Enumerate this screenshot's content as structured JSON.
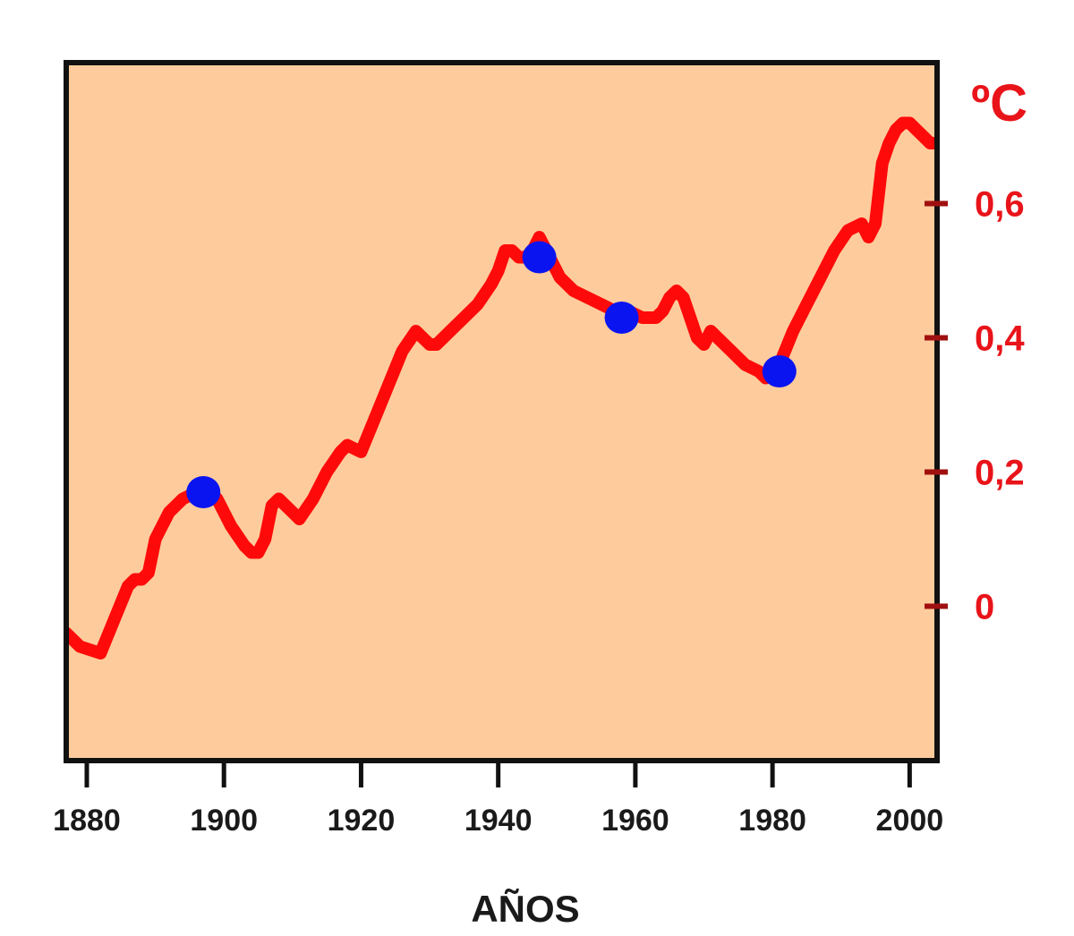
{
  "chart_data": {
    "type": "line",
    "title": "",
    "xlabel": "AÑOS",
    "ylabel": "ºC",
    "xlim": [
      1877,
      2004
    ],
    "ylim": [
      -0.23,
      0.81
    ],
    "x_ticks": [
      1880,
      1900,
      1920,
      1940,
      1960,
      1980,
      2000
    ],
    "y_ticks": [
      {
        "value": 0,
        "label": "0"
      },
      {
        "value": 0.2,
        "label": "0,2"
      },
      {
        "value": 0.4,
        "label": "0,4"
      },
      {
        "value": 0.6,
        "label": "0,6"
      }
    ],
    "grid": false,
    "legend": "none",
    "series": [
      {
        "color": "#ff0a0a",
        "x": [
          1877,
          1879,
          1882,
          1884,
          1886,
          1887,
          1888,
          1889,
          1890,
          1892,
          1894,
          1896,
          1897,
          1899,
          1901,
          1903,
          1904,
          1905,
          1906,
          1907,
          1908,
          1909,
          1911,
          1913,
          1915,
          1917,
          1918,
          1920,
          1922,
          1924,
          1926,
          1928,
          1929,
          1930,
          1931,
          1933,
          1935,
          1937,
          1939,
          1940,
          1941,
          1942,
          1943,
          1944,
          1945,
          1946,
          1947,
          1949,
          1951,
          1953,
          1955,
          1957,
          1959,
          1961,
          1963,
          1964,
          1965,
          1966,
          1967,
          1968,
          1969,
          1970,
          1971,
          1972,
          1974,
          1976,
          1978,
          1979,
          1980,
          1981,
          1983,
          1985,
          1987,
          1989,
          1991,
          1993,
          1994,
          1995,
          1996,
          1997,
          1998,
          1999,
          2000,
          2001,
          2002,
          2003,
          2004
        ],
        "values": [
          -0.04,
          -0.06,
          -0.07,
          -0.02,
          0.03,
          0.04,
          0.04,
          0.05,
          0.1,
          0.14,
          0.16,
          0.17,
          0.18,
          0.16,
          0.12,
          0.09,
          0.08,
          0.08,
          0.1,
          0.15,
          0.16,
          0.15,
          0.13,
          0.16,
          0.2,
          0.23,
          0.24,
          0.23,
          0.28,
          0.33,
          0.38,
          0.41,
          0.4,
          0.39,
          0.39,
          0.41,
          0.43,
          0.45,
          0.48,
          0.5,
          0.53,
          0.53,
          0.52,
          0.52,
          0.53,
          0.55,
          0.53,
          0.49,
          0.47,
          0.46,
          0.45,
          0.44,
          0.44,
          0.43,
          0.43,
          0.44,
          0.46,
          0.47,
          0.46,
          0.43,
          0.4,
          0.39,
          0.41,
          0.4,
          0.38,
          0.36,
          0.35,
          0.34,
          0.35,
          0.36,
          0.41,
          0.45,
          0.49,
          0.53,
          0.56,
          0.57,
          0.55,
          0.57,
          0.66,
          0.69,
          0.71,
          0.72,
          0.72,
          0.71,
          0.7,
          0.69,
          0.69
        ]
      }
    ],
    "markers": {
      "color": "#0a14f0",
      "points": [
        {
          "x": 1897,
          "y": 0.17
        },
        {
          "x": 1946,
          "y": 0.52
        },
        {
          "x": 1958,
          "y": 0.43
        },
        {
          "x": 1981,
          "y": 0.35
        }
      ]
    },
    "colors": {
      "plot_background": "#fecc9c",
      "frame": "#111111",
      "axis_labels": "#e8141a",
      "ticks": "#a01010"
    }
  }
}
